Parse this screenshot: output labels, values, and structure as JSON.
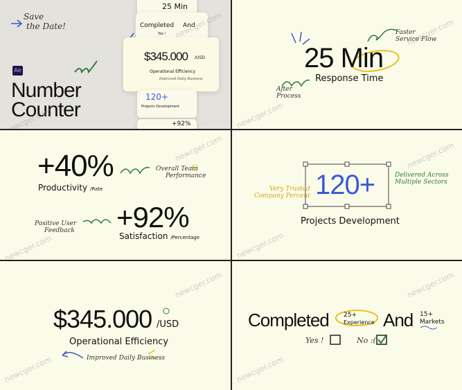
{
  "intro": {
    "badge": [
      "Save",
      "the Date!"
    ],
    "app": "Ae",
    "title_lines": [
      "Number",
      "Counter"
    ],
    "preview": {
      "min": "25 Min",
      "completed": "Completed",
      "and": "And",
      "yes": "Yes !",
      "amount": "$345.000",
      "unit": "/USD",
      "efficiency": "Operational Efficiency",
      "business": "Improved Daily Business",
      "count": "120+",
      "projects": "Projects Development",
      "pct": "+92%"
    }
  },
  "response": {
    "value": "25 Min",
    "label": "Response Time",
    "note_right": [
      "Faster",
      "Service Flow"
    ],
    "note_left": [
      "After",
      "Process"
    ]
  },
  "productivity": {
    "value": "+40%",
    "label": "Productivity",
    "unit": "/Rate",
    "note": [
      "Overall Team",
      "Performance"
    ]
  },
  "satisfaction": {
    "value": "+92%",
    "label": "Satisfaction",
    "unit": "/Percentage",
    "note": [
      "Positive User",
      "Feedback"
    ]
  },
  "projects": {
    "value": "120+",
    "label": "Projects Development",
    "note_left": [
      "Very Trusted",
      "Company Percent"
    ],
    "note_right": [
      "Delivered Across",
      "Multiple Sectors"
    ]
  },
  "revenue": {
    "value": "$345.000",
    "unit": "/USD",
    "label": "Operational Efficiency",
    "note": "Improved Daily Business"
  },
  "completed": {
    "word": "Completed",
    "experience_value": "25+",
    "experience_label": "Experience",
    "and": "And",
    "markets_value": "15+",
    "markets_label": "Markets",
    "yes": "Yes !",
    "no": "No :("
  },
  "watermark": "newcger.com"
}
